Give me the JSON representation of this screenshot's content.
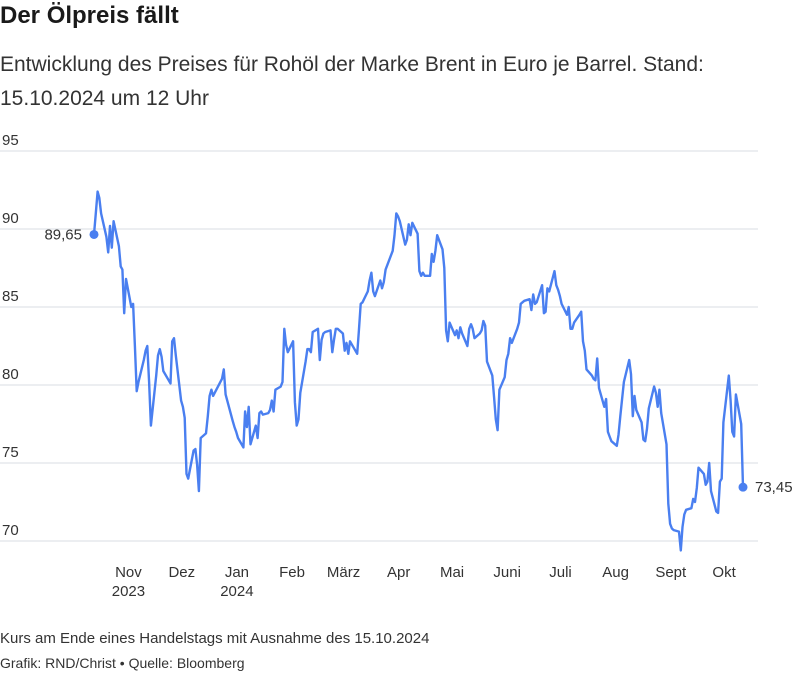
{
  "title": "Der Ölpreis fällt",
  "subtitle": "Entwicklung des Preises für Rohöl der Marke Brent in Euro je Barrel. Stand: 15.10.2024 um 12 Uhr",
  "note": "Kurs am Ende eines Handelstags mit Ausnahme des 15.10.2024",
  "source": "Grafik: RND/Christ • Quelle: Bloomberg",
  "colors": {
    "line": "#4a7ff0",
    "grid": "#d9dde3",
    "text": "#333333"
  },
  "chart_data": {
    "type": "line",
    "title": "Der Ölpreis fällt",
    "ylabel": "",
    "xlabel": "",
    "ylim": [
      68,
      95
    ],
    "yticks": [
      70,
      75,
      80,
      85,
      90,
      95
    ],
    "grid": true,
    "x_ticks": [
      {
        "label": "Nov",
        "sub": "2023",
        "date": "2023-11-01"
      },
      {
        "label": "Dez",
        "sub": "",
        "date": "2023-12-01"
      },
      {
        "label": "Jan",
        "sub": "2024",
        "date": "2024-01-01"
      },
      {
        "label": "Feb",
        "sub": "",
        "date": "2024-02-01"
      },
      {
        "label": "März",
        "sub": "",
        "date": "2024-03-01"
      },
      {
        "label": "Apr",
        "sub": "",
        "date": "2024-04-01"
      },
      {
        "label": "Mai",
        "sub": "",
        "date": "2024-05-01"
      },
      {
        "label": "Juni",
        "sub": "",
        "date": "2024-06-01"
      },
      {
        "label": "Juli",
        "sub": "",
        "date": "2024-07-01"
      },
      {
        "label": "Aug",
        "sub": "",
        "date": "2024-08-01"
      },
      {
        "label": "Sept",
        "sub": "",
        "date": "2024-09-01"
      },
      {
        "label": "Okt",
        "sub": "",
        "date": "2024-10-01"
      }
    ],
    "start_label": "89,65",
    "end_label": "73,45",
    "series": [
      {
        "points": [
          [
            "2023-10-16",
            89.65
          ],
          [
            "2023-10-17",
            91.0
          ],
          [
            "2023-10-18",
            92.4
          ],
          [
            "2023-10-19",
            92.0
          ],
          [
            "2023-10-20",
            91.0
          ],
          [
            "2023-10-23",
            89.5
          ],
          [
            "2023-10-24",
            88.5
          ],
          [
            "2023-10-25",
            90.2
          ],
          [
            "2023-10-26",
            88.8
          ],
          [
            "2023-10-27",
            90.5
          ],
          [
            "2023-10-30",
            88.9
          ],
          [
            "2023-10-31",
            87.6
          ],
          [
            "2023-11-01",
            87.4
          ],
          [
            "2023-11-02",
            84.6
          ],
          [
            "2023-11-03",
            86.8
          ],
          [
            "2023-11-06",
            85.0
          ],
          [
            "2023-11-07",
            85.2
          ],
          [
            "2023-11-08",
            82.5
          ],
          [
            "2023-11-09",
            79.6
          ],
          [
            "2023-11-10",
            80.2
          ],
          [
            "2023-11-13",
            81.6
          ],
          [
            "2023-11-14",
            82.2
          ],
          [
            "2023-11-15",
            82.5
          ],
          [
            "2023-11-16",
            80.2
          ],
          [
            "2023-11-17",
            77.4
          ],
          [
            "2023-11-20",
            80.6
          ],
          [
            "2023-11-21",
            81.9
          ],
          [
            "2023-11-22",
            82.3
          ],
          [
            "2023-11-23",
            81.8
          ],
          [
            "2023-11-24",
            80.9
          ],
          [
            "2023-11-27",
            80.3
          ],
          [
            "2023-11-28",
            80.1
          ],
          [
            "2023-11-29",
            82.8
          ],
          [
            "2023-11-30",
            83.0
          ],
          [
            "2023-12-01",
            81.9
          ],
          [
            "2023-12-04",
            79.0
          ],
          [
            "2023-12-05",
            78.6
          ],
          [
            "2023-12-06",
            77.9
          ],
          [
            "2023-12-07",
            74.3
          ],
          [
            "2023-12-08",
            74.0
          ],
          [
            "2023-12-11",
            75.8
          ],
          [
            "2023-12-12",
            75.9
          ],
          [
            "2023-12-13",
            74.9
          ],
          [
            "2023-12-14",
            73.2
          ],
          [
            "2023-12-15",
            76.6
          ],
          [
            "2023-12-18",
            76.9
          ],
          [
            "2023-12-19",
            78.0
          ],
          [
            "2023-12-20",
            79.3
          ],
          [
            "2023-12-21",
            79.7
          ],
          [
            "2023-12-22",
            79.3
          ],
          [
            "2023-12-27",
            80.4
          ],
          [
            "2023-12-28",
            81.0
          ],
          [
            "2023-12-29",
            79.4
          ],
          [
            "2024-01-02",
            77.7
          ],
          [
            "2024-01-03",
            77.3
          ],
          [
            "2024-01-04",
            77.0
          ],
          [
            "2024-01-05",
            76.6
          ],
          [
            "2024-01-08",
            76.0
          ],
          [
            "2024-01-09",
            78.3
          ],
          [
            "2024-01-10",
            77.3
          ],
          [
            "2024-01-11",
            78.6
          ],
          [
            "2024-01-12",
            76.2
          ],
          [
            "2024-01-15",
            77.4
          ],
          [
            "2024-01-16",
            76.6
          ],
          [
            "2024-01-17",
            78.2
          ],
          [
            "2024-01-18",
            78.3
          ],
          [
            "2024-01-19",
            78.1
          ],
          [
            "2024-01-22",
            78.2
          ],
          [
            "2024-01-23",
            78.4
          ],
          [
            "2024-01-24",
            79.0
          ],
          [
            "2024-01-25",
            78.3
          ],
          [
            "2024-01-26",
            79.7
          ],
          [
            "2024-01-29",
            79.9
          ],
          [
            "2024-01-30",
            80.2
          ],
          [
            "2024-01-31",
            83.6
          ],
          [
            "2024-02-01",
            82.6
          ],
          [
            "2024-02-02",
            82.1
          ],
          [
            "2024-02-05",
            82.8
          ],
          [
            "2024-02-06",
            78.9
          ],
          [
            "2024-02-07",
            77.4
          ],
          [
            "2024-02-08",
            77.8
          ],
          [
            "2024-02-09",
            79.5
          ],
          [
            "2024-02-12",
            81.5
          ],
          [
            "2024-02-13",
            82.3
          ],
          [
            "2024-02-14",
            82.3
          ],
          [
            "2024-02-15",
            82.1
          ],
          [
            "2024-02-16",
            83.4
          ],
          [
            "2024-02-19",
            83.6
          ],
          [
            "2024-02-20",
            81.6
          ],
          [
            "2024-02-21",
            82.9
          ],
          [
            "2024-02-22",
            83.3
          ],
          [
            "2024-02-23",
            83.4
          ],
          [
            "2024-02-26",
            83.5
          ],
          [
            "2024-02-27",
            82.1
          ],
          [
            "2024-02-28",
            82.9
          ],
          [
            "2024-02-29",
            83.6
          ],
          [
            "2024-03-01",
            83.6
          ],
          [
            "2024-03-04",
            83.3
          ],
          [
            "2024-03-05",
            82.2
          ],
          [
            "2024-03-06",
            82.7
          ],
          [
            "2024-03-07",
            82.0
          ],
          [
            "2024-03-08",
            82.8
          ],
          [
            "2024-03-11",
            82.2
          ],
          [
            "2024-03-12",
            82.0
          ],
          [
            "2024-03-13",
            83.5
          ],
          [
            "2024-03-14",
            85.2
          ],
          [
            "2024-03-15",
            85.3
          ],
          [
            "2024-03-18",
            86.0
          ],
          [
            "2024-03-19",
            86.7
          ],
          [
            "2024-03-20",
            87.2
          ],
          [
            "2024-03-21",
            86.0
          ],
          [
            "2024-03-22",
            85.7
          ],
          [
            "2024-03-25",
            86.7
          ],
          [
            "2024-03-26",
            86.2
          ],
          [
            "2024-03-27",
            86.6
          ],
          [
            "2024-03-28",
            87.4
          ],
          [
            "2024-04-01",
            88.6
          ],
          [
            "2024-04-02",
            89.6
          ],
          [
            "2024-04-03",
            91.0
          ],
          [
            "2024-04-04",
            90.8
          ],
          [
            "2024-04-05",
            90.5
          ],
          [
            "2024-04-08",
            89.0
          ],
          [
            "2024-04-09",
            89.3
          ],
          [
            "2024-04-10",
            90.3
          ],
          [
            "2024-04-11",
            89.6
          ],
          [
            "2024-04-12",
            90.4
          ],
          [
            "2024-04-15",
            89.7
          ],
          [
            "2024-04-16",
            87.3
          ],
          [
            "2024-04-17",
            87.0
          ],
          [
            "2024-04-18",
            87.2
          ],
          [
            "2024-04-19",
            87.0
          ],
          [
            "2024-04-22",
            87.0
          ],
          [
            "2024-04-23",
            88.4
          ],
          [
            "2024-04-24",
            87.9
          ],
          [
            "2024-04-25",
            88.6
          ],
          [
            "2024-04-26",
            89.6
          ],
          [
            "2024-04-29",
            88.7
          ],
          [
            "2024-04-30",
            87.5
          ],
          [
            "2024-05-01",
            83.5
          ],
          [
            "2024-05-02",
            82.8
          ],
          [
            "2024-05-03",
            84.0
          ],
          [
            "2024-05-06",
            83.2
          ],
          [
            "2024-05-07",
            83.5
          ],
          [
            "2024-05-08",
            83.0
          ],
          [
            "2024-05-09",
            83.7
          ],
          [
            "2024-05-10",
            83.3
          ],
          [
            "2024-05-13",
            82.5
          ],
          [
            "2024-05-14",
            83.6
          ],
          [
            "2024-05-15",
            83.9
          ],
          [
            "2024-05-16",
            83.6
          ],
          [
            "2024-05-17",
            83.0
          ],
          [
            "2024-05-20",
            83.3
          ],
          [
            "2024-05-21",
            83.5
          ],
          [
            "2024-05-22",
            84.1
          ],
          [
            "2024-05-23",
            83.8
          ],
          [
            "2024-05-24",
            81.5
          ],
          [
            "2024-05-27",
            80.6
          ],
          [
            "2024-05-28",
            79.2
          ],
          [
            "2024-05-29",
            77.8
          ],
          [
            "2024-05-30",
            77.1
          ],
          [
            "2024-05-31",
            79.7
          ],
          [
            "2024-06-03",
            80.5
          ],
          [
            "2024-06-04",
            81.6
          ],
          [
            "2024-06-05",
            82.0
          ],
          [
            "2024-06-06",
            83.0
          ],
          [
            "2024-06-07",
            82.7
          ],
          [
            "2024-06-10",
            83.6
          ],
          [
            "2024-06-11",
            84.0
          ],
          [
            "2024-06-12",
            85.2
          ],
          [
            "2024-06-13",
            85.3
          ],
          [
            "2024-06-14",
            85.4
          ],
          [
            "2024-06-17",
            85.5
          ],
          [
            "2024-06-18",
            84.8
          ],
          [
            "2024-06-19",
            85.8
          ],
          [
            "2024-06-20",
            85.2
          ],
          [
            "2024-06-21",
            85.3
          ],
          [
            "2024-06-24",
            86.4
          ],
          [
            "2024-06-25",
            84.6
          ],
          [
            "2024-06-26",
            84.7
          ],
          [
            "2024-06-27",
            86.2
          ],
          [
            "2024-06-28",
            86.0
          ],
          [
            "2024-07-01",
            87.3
          ],
          [
            "2024-07-02",
            86.4
          ],
          [
            "2024-07-03",
            86.1
          ],
          [
            "2024-07-04",
            85.7
          ],
          [
            "2024-07-05",
            85.2
          ],
          [
            "2024-07-08",
            84.5
          ],
          [
            "2024-07-09",
            85.0
          ],
          [
            "2024-07-10",
            83.6
          ],
          [
            "2024-07-11",
            83.6
          ],
          [
            "2024-07-12",
            84.0
          ],
          [
            "2024-07-15",
            84.5
          ],
          [
            "2024-07-16",
            84.7
          ],
          [
            "2024-07-17",
            82.8
          ],
          [
            "2024-07-18",
            82.2
          ],
          [
            "2024-07-19",
            81.0
          ],
          [
            "2024-07-22",
            80.6
          ],
          [
            "2024-07-23",
            80.4
          ],
          [
            "2024-07-24",
            80.3
          ],
          [
            "2024-07-25",
            81.7
          ],
          [
            "2024-07-26",
            79.8
          ],
          [
            "2024-07-29",
            78.6
          ],
          [
            "2024-07-30",
            79.1
          ],
          [
            "2024-07-31",
            77.0
          ],
          [
            "2024-08-01",
            76.7
          ],
          [
            "2024-08-02",
            76.4
          ],
          [
            "2024-08-05",
            76.1
          ],
          [
            "2024-08-06",
            76.8
          ],
          [
            "2024-08-07",
            78.0
          ],
          [
            "2024-08-08",
            79.1
          ],
          [
            "2024-08-09",
            80.2
          ],
          [
            "2024-08-12",
            81.6
          ],
          [
            "2024-08-13",
            80.7
          ],
          [
            "2024-08-14",
            78.0
          ],
          [
            "2024-08-15",
            79.3
          ],
          [
            "2024-08-16",
            78.4
          ],
          [
            "2024-08-19",
            77.6
          ],
          [
            "2024-08-20",
            76.5
          ],
          [
            "2024-08-21",
            76.4
          ],
          [
            "2024-08-22",
            77.2
          ],
          [
            "2024-08-23",
            78.5
          ],
          [
            "2024-08-26",
            79.9
          ],
          [
            "2024-08-27",
            79.5
          ],
          [
            "2024-08-28",
            78.6
          ],
          [
            "2024-08-29",
            79.7
          ],
          [
            "2024-08-30",
            78.2
          ],
          [
            "2024-09-02",
            76.2
          ],
          [
            "2024-09-03",
            72.4
          ],
          [
            "2024-09-04",
            71.1
          ],
          [
            "2024-09-05",
            70.8
          ],
          [
            "2024-09-06",
            70.7
          ],
          [
            "2024-09-09",
            70.6
          ],
          [
            "2024-09-10",
            69.4
          ],
          [
            "2024-09-11",
            70.9
          ],
          [
            "2024-09-12",
            71.7
          ],
          [
            "2024-09-13",
            72.0
          ],
          [
            "2024-09-16",
            72.1
          ],
          [
            "2024-09-17",
            72.7
          ],
          [
            "2024-09-18",
            72.5
          ],
          [
            "2024-09-19",
            73.4
          ],
          [
            "2024-09-20",
            74.7
          ],
          [
            "2024-09-23",
            74.3
          ],
          [
            "2024-09-24",
            73.6
          ],
          [
            "2024-09-25",
            73.8
          ],
          [
            "2024-09-26",
            75.0
          ],
          [
            "2024-09-27",
            73.2
          ],
          [
            "2024-09-30",
            71.9
          ],
          [
            "2024-10-01",
            71.8
          ],
          [
            "2024-10-02",
            73.8
          ],
          [
            "2024-10-03",
            74.0
          ],
          [
            "2024-10-04",
            77.6
          ],
          [
            "2024-10-07",
            80.6
          ],
          [
            "2024-10-08",
            79.0
          ],
          [
            "2024-10-09",
            77.0
          ],
          [
            "2024-10-10",
            76.7
          ],
          [
            "2024-10-11",
            79.4
          ],
          [
            "2024-10-14",
            77.5
          ],
          [
            "2024-10-15",
            73.45
          ]
        ]
      }
    ]
  }
}
